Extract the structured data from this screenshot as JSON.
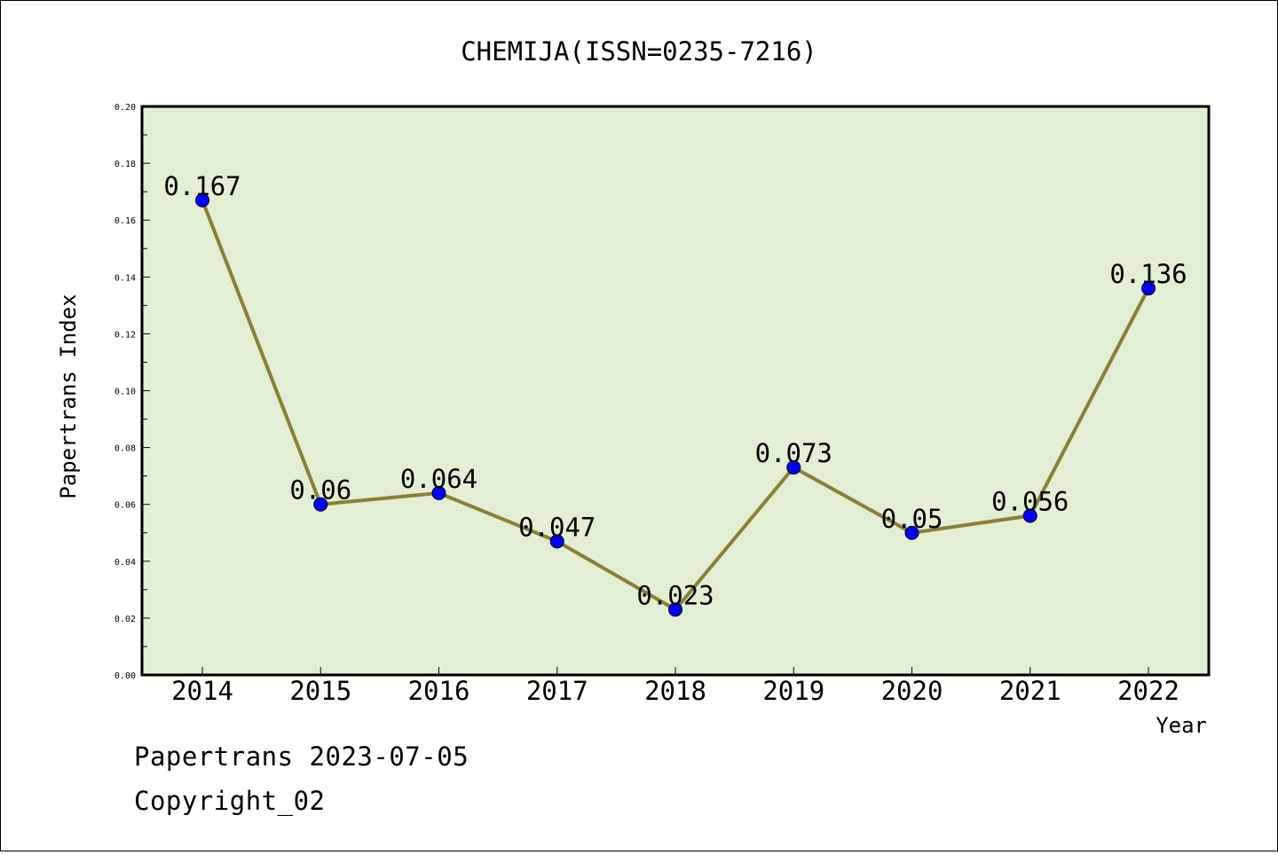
{
  "chart_data": {
    "type": "line",
    "title": "CHEMIJA(ISSN=0235-7216)",
    "xlabel": "Year",
    "ylabel": "Papertrans Index",
    "categories": [
      "2014",
      "2015",
      "2016",
      "2017",
      "2018",
      "2019",
      "2020",
      "2021",
      "2022"
    ],
    "values": [
      0.167,
      0.06,
      0.064,
      0.047,
      0.023,
      0.073,
      0.05,
      0.056,
      0.136
    ],
    "value_labels": [
      "0.167",
      "0.06",
      "0.064",
      "0.047",
      "0.023",
      "0.073",
      "0.05",
      "0.056",
      "0.136"
    ],
    "ylim": [
      0,
      0.2
    ],
    "yticks": [
      "0.00",
      "0.02",
      "0.04",
      "0.06",
      "0.08",
      "0.10",
      "0.12",
      "0.14",
      "0.16",
      "0.18",
      "0.20"
    ],
    "grid": false,
    "colors": {
      "plot_background": "#e2efd4",
      "line": "#8b7f35",
      "marker": "#0000ff"
    }
  },
  "footer": {
    "line1": "Papertrans 2023-07-05",
    "line2": "Copyright_02"
  }
}
